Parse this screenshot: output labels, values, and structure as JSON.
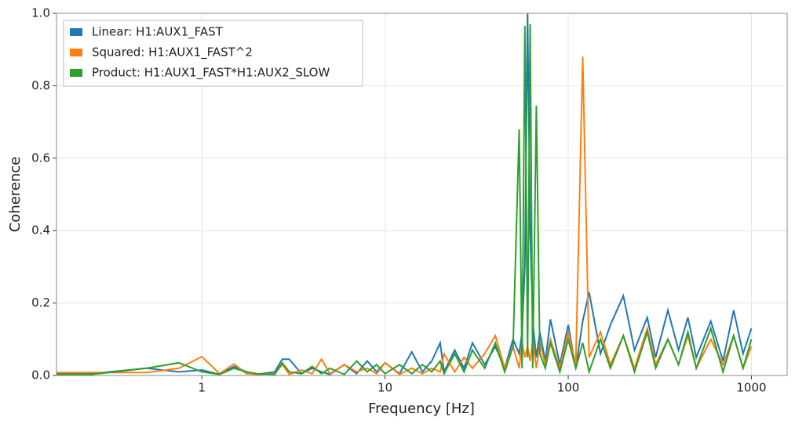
{
  "chart_data": {
    "type": "line",
    "xlabel": "Frequency [Hz]",
    "ylabel": "Coherence",
    "xscale": "log",
    "grid": true,
    "legend": "upper left",
    "xlim": [
      0.161,
      1567
    ],
    "ylim": [
      0,
      1
    ],
    "xticks": [
      1,
      10,
      100,
      1000
    ],
    "yticks": [
      {
        "value": 0,
        "label": "0.0"
      },
      0.2,
      0.4,
      0.6,
      0.8,
      {
        "value": 1,
        "label": "1.0"
      }
    ],
    "x": [
      0.161,
      0.25,
      0.5,
      0.75,
      1,
      1.25,
      1.5,
      1.75,
      2,
      2.5,
      2.75,
      3,
      3.5,
      4,
      4.5,
      5,
      6,
      7,
      8,
      9,
      10,
      12,
      14,
      16,
      18,
      20,
      21,
      24,
      27,
      30,
      35,
      40,
      45,
      50,
      54,
      56,
      58,
      60,
      62,
      64,
      67,
      70,
      75,
      80,
      90,
      100,
      110,
      120,
      130,
      150,
      170,
      200,
      230,
      270,
      300,
      350,
      400,
      450,
      500,
      600,
      700,
      800,
      900,
      1000
    ],
    "series": [
      {
        "name": "Linear: H1:AUX1_FAST",
        "color": "#1f77b4",
        "values": [
          0.005,
          0.005,
          0.02,
          0.01,
          0.015,
          0.003,
          0.025,
          0.01,
          0.003,
          0.01,
          0.045,
          0.045,
          0.005,
          0.02,
          0.01,
          0.003,
          0.03,
          0.005,
          0.04,
          0.01,
          0.035,
          0.005,
          0.065,
          0.01,
          0.04,
          0.09,
          0.01,
          0.07,
          0.02,
          0.09,
          0.03,
          0.08,
          0.02,
          0.1,
          0.06,
          0.12,
          0.3,
          1.0,
          0.4,
          0.15,
          0.05,
          0.12,
          0.04,
          0.155,
          0.03,
          0.14,
          0.02,
          0.15,
          0.23,
          0.06,
          0.14,
          0.22,
          0.07,
          0.16,
          0.05,
          0.18,
          0.07,
          0.16,
          0.05,
          0.15,
          0.04,
          0.18,
          0.06,
          0.13
        ]
      },
      {
        "name": "Squared: H1:AUX1_FAST^2",
        "color": "#ff7f0e",
        "values": [
          0.008,
          0.008,
          0.008,
          0.02,
          0.052,
          0.005,
          0.032,
          0.005,
          0.003,
          0.005,
          0.03,
          0.003,
          0.015,
          0.005,
          0.045,
          0.005,
          0.03,
          0.01,
          0.02,
          0.005,
          0.035,
          0.003,
          0.02,
          0.005,
          0.02,
          0.01,
          0.06,
          0.01,
          0.05,
          0.02,
          0.06,
          0.11,
          0.02,
          0.08,
          0.02,
          0.09,
          0.05,
          0.08,
          0.04,
          0.1,
          0.02,
          0.09,
          0.03,
          0.1,
          0.02,
          0.12,
          0.03,
          0.88,
          0.05,
          0.12,
          0.03,
          0.11,
          0.02,
          0.13,
          0.03,
          0.1,
          0.03,
          0.11,
          0.02,
          0.1,
          0.03,
          0.11,
          0.02,
          0.08
        ]
      },
      {
        "name": "Product: H1:AUX1_FAST*H1:AUX2_SLOW",
        "color": "#2ca02c",
        "values": [
          0.003,
          0.003,
          0.02,
          0.035,
          0.01,
          0.003,
          0.02,
          0.01,
          0.005,
          0.003,
          0.035,
          0.01,
          0.005,
          0.025,
          0.005,
          0.02,
          0.003,
          0.04,
          0.01,
          0.03,
          0.005,
          0.03,
          0.005,
          0.03,
          0.01,
          0.04,
          0.005,
          0.06,
          0.01,
          0.07,
          0.02,
          0.09,
          0.01,
          0.08,
          0.68,
          0.02,
          0.965,
          0.05,
          0.97,
          0.02,
          0.745,
          0.06,
          0.02,
          0.09,
          0.01,
          0.1,
          0.02,
          0.09,
          0.01,
          0.1,
          0.02,
          0.11,
          0.01,
          0.12,
          0.02,
          0.1,
          0.03,
          0.12,
          0.02,
          0.13,
          0.01,
          0.11,
          0.02,
          0.1
        ]
      }
    ]
  }
}
